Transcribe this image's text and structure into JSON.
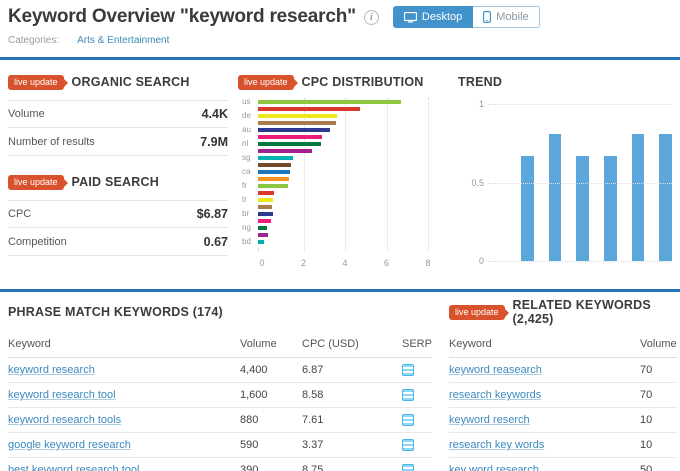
{
  "header": {
    "title": "Keyword Overview \"keyword research\"",
    "categories_label": "Categories:",
    "categories_value": "Arts & Entertainment",
    "device_toggle": {
      "desktop": "Desktop",
      "mobile": "Mobile"
    }
  },
  "badges": {
    "live_update": "live update"
  },
  "organic_search": {
    "title": "ORGANIC SEARCH",
    "rows": [
      {
        "label": "Volume",
        "value": "4.4K"
      },
      {
        "label": "Number of results",
        "value": "7.9M"
      }
    ]
  },
  "paid_search": {
    "title": "PAID SEARCH",
    "rows": [
      {
        "label": "CPC",
        "value": "$6.87"
      },
      {
        "label": "Competition",
        "value": "0.67"
      }
    ]
  },
  "chart_data": [
    {
      "type": "bar",
      "orientation": "horizontal",
      "title": "CPC DISTRIBUTION",
      "categories": [
        "us",
        "",
        "de",
        "",
        "au",
        "",
        "nl",
        "",
        "sg",
        "",
        "ca",
        "",
        "fr",
        "",
        "tr",
        "",
        "br",
        "",
        "ng",
        "",
        "bd",
        ""
      ],
      "values": [
        6.87,
        4.9,
        3.8,
        3.75,
        3.45,
        3.1,
        3.05,
        2.6,
        1.7,
        1.6,
        1.55,
        1.5,
        1.45,
        0.75,
        0.7,
        0.68,
        0.7,
        0.62,
        0.45,
        0.48,
        0.3,
        0.06
      ],
      "colors": [
        "#8dc63f",
        "#d93a2b",
        "#ece819",
        "#a97c50",
        "#2b3990",
        "#ec1d7a",
        "#007a3d",
        "#a3218e",
        "#00b1b0",
        "#754c29",
        "#1b75bc",
        "#f7941e",
        "#8dc63f",
        "#d93a2b",
        "#ece819",
        "#a97c50",
        "#2b3990",
        "#ec1d7a",
        "#007a3d",
        "#a3218e",
        "#00b1b0",
        "#d0d0d0"
      ],
      "xlabel": "",
      "ylabel": "",
      "xlim": [
        0,
        8
      ],
      "xticks": [
        0,
        2,
        4,
        6,
        8
      ],
      "grid": "dotted-vertical"
    },
    {
      "type": "bar",
      "orientation": "vertical",
      "title": "TREND",
      "values": [
        0.67,
        0.81,
        0.67,
        0.67,
        0.81,
        0.81
      ],
      "bar_color": "#5ba7dc",
      "xlabel": "",
      "ylabel": "",
      "ylim": [
        0,
        1
      ],
      "yticks": [
        0,
        0.5,
        1
      ],
      "grid": "dotted-horizontal",
      "legend": "none"
    }
  ],
  "phrase_match": {
    "title": "PHRASE MATCH KEYWORDS (174)",
    "columns": [
      "Keyword",
      "Volume",
      "CPC (USD)",
      "SERP"
    ],
    "rows": [
      {
        "keyword": "keyword research",
        "volume": "4,400",
        "cpc": "6.87",
        "serp": "serp-icon"
      },
      {
        "keyword": "keyword research tool",
        "volume": "1,600",
        "cpc": "8.58",
        "serp": "serp-icon"
      },
      {
        "keyword": "keyword research tools",
        "volume": "880",
        "cpc": "7.61",
        "serp": "serp-icon"
      },
      {
        "keyword": "google keyword research",
        "volume": "590",
        "cpc": "3.37",
        "serp": "serp-icon"
      },
      {
        "keyword": "best keyword research tool",
        "volume": "390",
        "cpc": "8.75",
        "serp": "serp-icon"
      }
    ]
  },
  "related": {
    "title": "RELATED KEYWORDS (2,425)",
    "columns": [
      "Keyword",
      "Volume"
    ],
    "rows": [
      {
        "keyword": "keyword reasearch",
        "volume": "70"
      },
      {
        "keyword": "research keywords",
        "volume": "70"
      },
      {
        "keyword": "keyword reserch",
        "volume": "10"
      },
      {
        "keyword": "research key words",
        "volume": "10"
      },
      {
        "keyword": "key word research",
        "volume": "50"
      }
    ]
  },
  "colors": {
    "divider_blue": "#2373bb",
    "link_blue": "#3b8abe",
    "badge_orange": "#d9522e",
    "trend_bar_blue": "#5ba7dc",
    "serp_icon_blue": "#49b4e9"
  }
}
